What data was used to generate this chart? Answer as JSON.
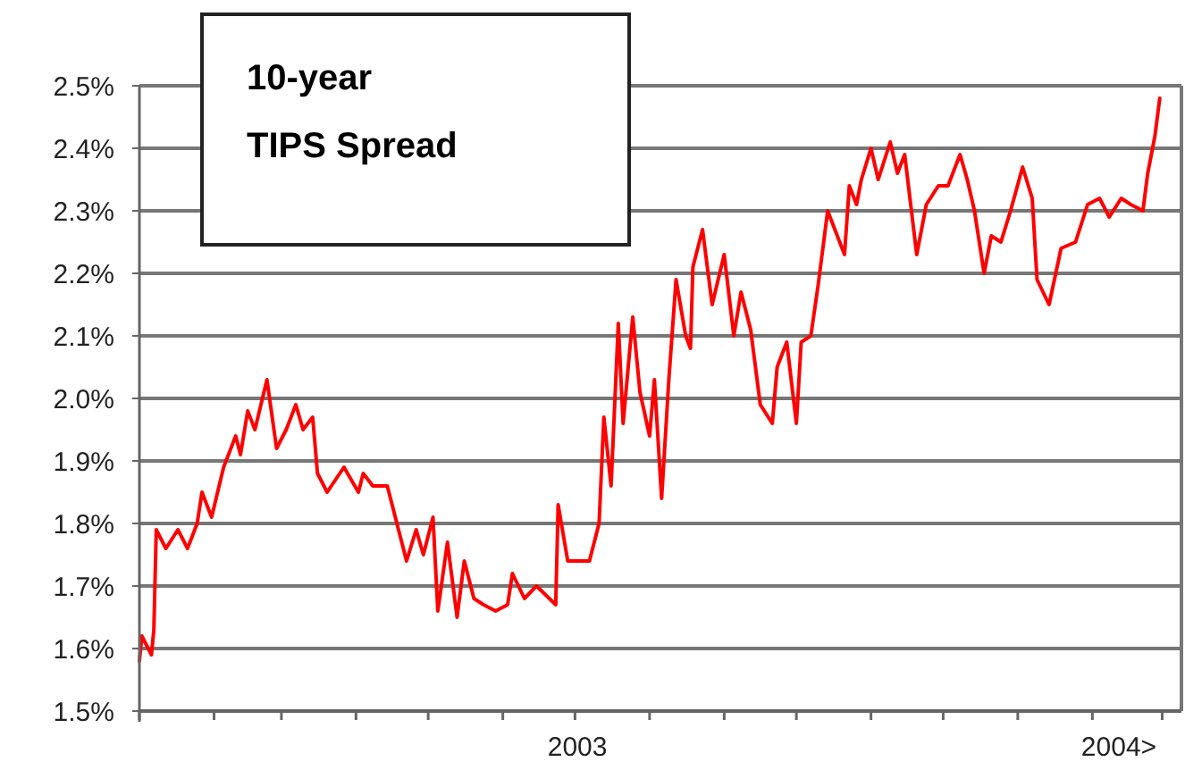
{
  "chart_data": {
    "type": "line",
    "title": "10-year\nTIPS Spread",
    "x": [
      "2003-01-01",
      "2003-01-02",
      "2003-01-06",
      "2003-01-07",
      "2003-01-08",
      "2003-01-12",
      "2003-01-17",
      "2003-01-21",
      "2003-01-25",
      "2003-01-27",
      "2003-01-31",
      "2003-02-05",
      "2003-02-10",
      "2003-02-12",
      "2003-02-15",
      "2003-02-18",
      "2003-02-23",
      "2003-02-27",
      "2003-03-03",
      "2003-03-07",
      "2003-03-10",
      "2003-03-14",
      "2003-03-16",
      "2003-03-20",
      "2003-03-27",
      "2003-04-02",
      "2003-04-04",
      "2003-04-08",
      "2003-04-14",
      "2003-04-16",
      "2003-04-22",
      "2003-04-26",
      "2003-04-29",
      "2003-05-03",
      "2003-05-05",
      "2003-05-09",
      "2003-05-13",
      "2003-05-16",
      "2003-05-20",
      "2003-05-24",
      "2003-05-29",
      "2003-06-03",
      "2003-06-05",
      "2003-06-10",
      "2003-06-15",
      "2003-06-23",
      "2003-06-24",
      "2003-06-28",
      "2003-07-02",
      "2003-07-07",
      "2003-07-11",
      "2003-07-13",
      "2003-07-16",
      "2003-07-19",
      "2003-07-21",
      "2003-07-25",
      "2003-07-28",
      "2003-08-01",
      "2003-08-03",
      "2003-08-06",
      "2003-08-09",
      "2003-08-12",
      "2003-08-16",
      "2003-08-18",
      "2003-08-19",
      "2003-08-23",
      "2003-08-27",
      "2003-09-01",
      "2003-09-05",
      "2003-09-08",
      "2003-09-12",
      "2003-09-16",
      "2003-09-21",
      "2003-09-23",
      "2003-09-27",
      "2003-10-01",
      "2003-10-03",
      "2003-10-07",
      "2003-10-10",
      "2003-10-14",
      "2003-10-21",
      "2003-10-23",
      "2003-10-26",
      "2003-10-28",
      "2003-11-01",
      "2003-11-04",
      "2003-11-09",
      "2003-11-12",
      "2003-11-15",
      "2003-11-20",
      "2003-11-24",
      "2003-11-29",
      "2003-12-03",
      "2003-12-08",
      "2003-12-11",
      "2003-12-14",
      "2003-12-18",
      "2003-12-21",
      "2003-12-25",
      "2003-12-29",
      "2004-01-03",
      "2004-01-07",
      "2004-01-09",
      "2004-01-14",
      "2004-01-19",
      "2004-01-25",
      "2004-01-30",
      "2004-02-04",
      "2004-02-08",
      "2004-02-13",
      "2004-02-17",
      "2004-02-22",
      "2004-02-24",
      "2004-02-27",
      "2004-02-29"
    ],
    "series": [
      {
        "color": "#ff0000",
        "values": [
          1.58,
          1.62,
          1.59,
          1.63,
          1.79,
          1.76,
          1.79,
          1.76,
          1.8,
          1.85,
          1.81,
          1.89,
          1.94,
          1.91,
          1.98,
          1.95,
          2.03,
          1.92,
          1.95,
          1.99,
          1.95,
          1.97,
          1.88,
          1.85,
          1.89,
          1.85,
          1.88,
          1.86,
          1.86,
          1.83,
          1.74,
          1.79,
          1.75,
          1.81,
          1.66,
          1.77,
          1.65,
          1.74,
          1.68,
          1.67,
          1.66,
          1.67,
          1.72,
          1.68,
          1.7,
          1.67,
          1.83,
          1.74,
          1.74,
          1.74,
          1.8,
          1.97,
          1.86,
          2.12,
          1.96,
          2.13,
          2.01,
          1.94,
          2.03,
          1.84,
          2.03,
          2.19,
          2.1,
          2.08,
          2.21,
          2.27,
          2.15,
          2.23,
          2.1,
          2.17,
          2.11,
          1.99,
          1.96,
          2.05,
          2.09,
          1.96,
          2.09,
          2.1,
          2.18,
          2.3,
          2.23,
          2.34,
          2.31,
          2.35,
          2.4,
          2.35,
          2.41,
          2.36,
          2.39,
          2.23,
          2.31,
          2.34,
          2.34,
          2.39,
          2.35,
          2.3,
          2.2,
          2.26,
          2.25,
          2.3,
          2.37,
          2.32,
          2.19,
          2.15,
          2.24,
          2.25,
          2.31,
          2.32,
          2.29,
          2.32,
          2.31,
          2.3,
          2.36,
          2.42,
          2.48
        ]
      }
    ],
    "xlim": [
      "2003-01-01",
      "2004-03-09"
    ],
    "xticks": [
      {
        "value": "2003-01-01",
        "label": null
      },
      {
        "value": "2003-02-01",
        "label": null
      },
      {
        "value": "2003-03-01",
        "label": null
      },
      {
        "value": "2003-04-01",
        "label": null
      },
      {
        "value": "2003-05-01",
        "label": null
      },
      {
        "value": "2003-06-01",
        "label": null
      },
      {
        "value": "2003-07-01",
        "label": null
      },
      {
        "value": "2003-08-01",
        "label": null
      },
      {
        "value": "2003-09-01",
        "label": null
      },
      {
        "value": "2003-10-01",
        "label": null
      },
      {
        "value": "2003-11-01",
        "label": null
      },
      {
        "value": "2003-12-01",
        "label": null
      },
      {
        "value": "2004-01-01",
        "label": null
      },
      {
        "value": "2004-02-01",
        "label": null
      },
      {
        "value": "2004-03-01",
        "label": null
      },
      {
        "value": "2003-07-02",
        "label": "2003"
      },
      {
        "value": "2004-02-12",
        "label": "2004>"
      }
    ],
    "ylim": [
      1.5,
      2.5
    ],
    "yticks": [
      {
        "value": 1.5,
        "label": "1.5%"
      },
      {
        "value": 1.6,
        "label": "1.6%"
      },
      {
        "value": 1.7,
        "label": "1.7%"
      },
      {
        "value": 1.8,
        "label": "1.8%"
      },
      {
        "value": 1.9,
        "label": "1.9%"
      },
      {
        "value": 2.0,
        "label": "2.0%"
      },
      {
        "value": 2.1,
        "label": "2.1%"
      },
      {
        "value": 2.2,
        "label": "2.2%"
      },
      {
        "value": 2.3,
        "label": "2.3%"
      },
      {
        "value": 2.4,
        "label": "2.4%"
      },
      {
        "value": 2.5,
        "label": "2.5%"
      }
    ],
    "grid": "y",
    "marker": "none",
    "line_style": "solid"
  }
}
